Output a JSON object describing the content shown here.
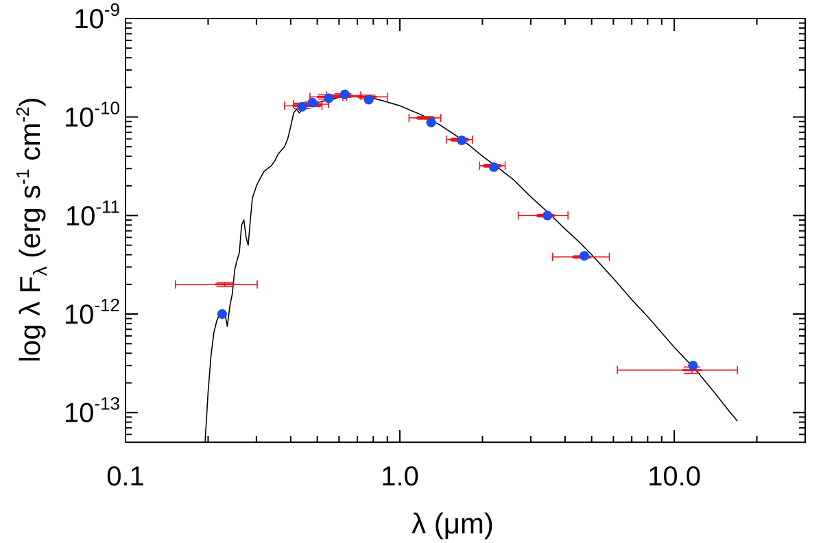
{
  "chart_data": {
    "type": "scatter",
    "title": "",
    "xlabel": "λ (μm)",
    "ylabel_parts": {
      "prefix": "log λ F",
      "subscript": "λ",
      "units_open": " (erg s",
      "s_exponent": "-1",
      "units_mid": " cm",
      "cm_exponent": "-2",
      "units_close": ")"
    },
    "x_scale": "log",
    "y_scale": "log",
    "xlim": [
      0.1,
      30
    ],
    "ylim": [
      5e-14,
      1e-09
    ],
    "x_ticks": [
      {
        "value": 0.1,
        "label": "0.1"
      },
      {
        "value": 1,
        "label": "1.0"
      },
      {
        "value": 10,
        "label": "10.0"
      }
    ],
    "y_ticks": [
      {
        "value": 1e-09,
        "mantissa": "10",
        "exponent": "-9"
      },
      {
        "value": 1e-10,
        "mantissa": "10",
        "exponent": "-10"
      },
      {
        "value": 1e-11,
        "mantissa": "10",
        "exponent": "-11"
      },
      {
        "value": 1e-12,
        "mantissa": "10",
        "exponent": "-12"
      },
      {
        "value": 1e-13,
        "mantissa": "10",
        "exponent": "-13"
      }
    ],
    "grid": false,
    "legend": "none",
    "colors": {
      "model": "#000000",
      "observed": "#e8141c",
      "synthetic": "#1f4cf0"
    },
    "model_spectrum": [
      [
        0.195,
        5e-14
      ],
      [
        0.2,
        1.6e-13
      ],
      [
        0.205,
        3.8e-13
      ],
      [
        0.21,
        6.5e-13
      ],
      [
        0.215,
        8.5e-13
      ],
      [
        0.22,
        1e-12
      ],
      [
        0.225,
        9e-13
      ],
      [
        0.23,
        1.05e-12
      ],
      [
        0.235,
        7.5e-13
      ],
      [
        0.24,
        1.2e-12
      ],
      [
        0.245,
        1.6e-12
      ],
      [
        0.25,
        2.8e-12
      ],
      [
        0.255,
        3.5e-12
      ],
      [
        0.26,
        4.2e-12
      ],
      [
        0.265,
        8e-12
      ],
      [
        0.27,
        9e-12
      ],
      [
        0.275,
        6e-12
      ],
      [
        0.28,
        5e-12
      ],
      [
        0.285,
        9e-12
      ],
      [
        0.29,
        1.5e-11
      ],
      [
        0.3,
        2e-11
      ],
      [
        0.31,
        2.4e-11
      ],
      [
        0.32,
        2.8e-11
      ],
      [
        0.33,
        3e-11
      ],
      [
        0.34,
        3.2e-11
      ],
      [
        0.35,
        3.6e-11
      ],
      [
        0.36,
        4.2e-11
      ],
      [
        0.37,
        4.6e-11
      ],
      [
        0.38,
        5e-11
      ],
      [
        0.39,
        6e-11
      ],
      [
        0.4,
        8e-11
      ],
      [
        0.41,
        1.1e-10
      ],
      [
        0.42,
        1.2e-10
      ],
      [
        0.43,
        1.1e-10
      ],
      [
        0.44,
        1.2e-10
      ],
      [
        0.45,
        1.27e-10
      ],
      [
        0.47,
        1.33e-10
      ],
      [
        0.5,
        1.4e-10
      ],
      [
        0.55,
        1.5e-10
      ],
      [
        0.6,
        1.58e-10
      ],
      [
        0.65,
        1.65e-10
      ],
      [
        0.7,
        1.65e-10
      ],
      [
        0.8,
        1.55e-10
      ],
      [
        0.9,
        1.42e-10
      ],
      [
        1.0,
        1.3e-10
      ],
      [
        1.2,
        1.05e-10
      ],
      [
        1.4,
        8.3e-11
      ],
      [
        1.6,
        6.5e-11
      ],
      [
        1.8,
        5.1e-11
      ],
      [
        2.0,
        4e-11
      ],
      [
        2.3,
        3e-11
      ],
      [
        2.6,
        2.3e-11
      ],
      [
        3.0,
        1.55e-11
      ],
      [
        3.5,
        1.05e-11
      ],
      [
        4.0,
        7.3e-12
      ],
      [
        4.5,
        5.4e-12
      ],
      [
        5.0,
        4e-12
      ],
      [
        6.0,
        2.3e-12
      ],
      [
        7.0,
        1.4e-12
      ],
      [
        8.0,
        9.4e-13
      ],
      [
        10.0,
        4.6e-13
      ],
      [
        12.0,
        2.7e-13
      ],
      [
        14.0,
        1.6e-13
      ],
      [
        16.0,
        1e-13
      ],
      [
        17.0,
        8.2e-14
      ]
    ],
    "observed": [
      {
        "x": 0.23,
        "y": 2e-12,
        "xerr_low": 0.152,
        "xerr_high": 0.302,
        "yerr_low": 1.9e-12,
        "yerr_high": 2.1e-12
      },
      {
        "x": 0.44,
        "y": 1.3e-10,
        "xerr_low": 0.38,
        "xerr_high": 0.52,
        "yerr_low": 1.22e-10,
        "yerr_high": 1.38e-10
      },
      {
        "x": 0.48,
        "y": 1.35e-10,
        "xerr_low": 0.41,
        "xerr_high": 0.55,
        "yerr_low": 1.28e-10,
        "yerr_high": 1.42e-10
      },
      {
        "x": 0.54,
        "y": 1.6e-10,
        "xerr_low": 0.47,
        "xerr_high": 0.62,
        "yerr_low": 1.52e-10,
        "yerr_high": 1.68e-10
      },
      {
        "x": 0.62,
        "y": 1.65e-10,
        "xerr_low": 0.54,
        "xerr_high": 0.72,
        "yerr_low": 1.58e-10,
        "yerr_high": 1.72e-10
      },
      {
        "x": 0.76,
        "y": 1.6e-10,
        "xerr_low": 0.64,
        "xerr_high": 0.9,
        "yerr_low": 1.53e-10,
        "yerr_high": 1.67e-10
      },
      {
        "x": 1.24,
        "y": 9.8e-11,
        "xerr_low": 1.08,
        "xerr_high": 1.41,
        "yerr_low": 9.5e-11,
        "yerr_high": 1.01e-10
      },
      {
        "x": 1.65,
        "y": 5.9e-11,
        "xerr_low": 1.48,
        "xerr_high": 1.84,
        "yerr_low": 5.7e-11,
        "yerr_high": 6.1e-11
      },
      {
        "x": 2.17,
        "y": 3.2e-11,
        "xerr_low": 1.95,
        "xerr_high": 2.42,
        "yerr_low": 3.1e-11,
        "yerr_high": 3.3e-11
      },
      {
        "x": 3.4,
        "y": 1e-11,
        "xerr_low": 2.7,
        "xerr_high": 4.1,
        "yerr_low": 9.7e-12,
        "yerr_high": 1.03e-11
      },
      {
        "x": 4.6,
        "y": 3.8e-12,
        "xerr_low": 3.6,
        "xerr_high": 5.8,
        "yerr_low": 3.7e-12,
        "yerr_high": 3.9e-12
      },
      {
        "x": 11.6,
        "y": 2.7e-13,
        "xerr_low": 6.2,
        "xerr_high": 17.0,
        "yerr_low": 2.5e-13,
        "yerr_high": 2.9e-13
      }
    ],
    "synthetic": [
      {
        "x": 0.225,
        "y": 1e-12
      },
      {
        "x": 0.44,
        "y": 1.27e-10
      },
      {
        "x": 0.48,
        "y": 1.4e-10
      },
      {
        "x": 0.55,
        "y": 1.55e-10
      },
      {
        "x": 0.63,
        "y": 1.7e-10
      },
      {
        "x": 0.77,
        "y": 1.5e-10
      },
      {
        "x": 1.3,
        "y": 8.8e-11
      },
      {
        "x": 1.68,
        "y": 5.8e-11
      },
      {
        "x": 2.2,
        "y": 3.1e-11
      },
      {
        "x": 3.45,
        "y": 1e-11
      },
      {
        "x": 4.7,
        "y": 3.9e-12
      },
      {
        "x": 11.7,
        "y": 3e-13
      }
    ]
  }
}
